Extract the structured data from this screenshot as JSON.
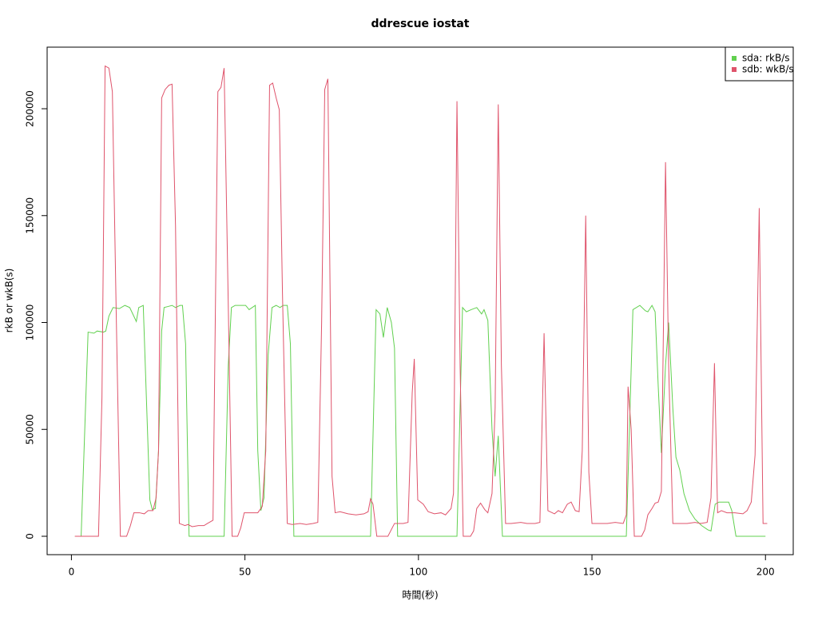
{
  "chart_data": {
    "type": "line",
    "title": "ddrescue iostat",
    "x_label": "時間(秒)",
    "y_label": "rkB or wkB(s)",
    "xlim": [
      -7,
      208
    ],
    "ylim": [
      -8600,
      228800
    ],
    "xticks": [
      0,
      50,
      100,
      150,
      200
    ],
    "yticks": [
      0,
      50000,
      100000,
      150000,
      200000
    ],
    "legend_position": "top-right",
    "series": [
      {
        "name": "sda: rkB/s",
        "color": "#61d04f",
        "x": [
          1,
          2.8,
          4.8,
          6.5,
          7.4,
          9.2,
          9.9,
          10.8,
          12,
          13.8,
          15.4,
          16.8,
          18.7,
          19.4,
          20.7,
          21.7,
          22.6,
          23.3,
          24.2,
          25.1,
          26,
          26.7,
          27.9,
          29,
          30,
          31.3,
          32,
          32.9,
          33.9,
          44,
          45.2,
          46.1,
          47.2,
          50.2,
          51.2,
          53,
          53.7,
          54.6,
          55.5,
          56.7,
          57.8,
          59,
          60.1,
          61,
          62.2,
          63.1,
          64.1,
          86.2,
          87.8,
          88.9,
          89.9,
          91,
          92.2,
          93.1,
          94,
          111.1,
          112.7,
          113.8,
          115.2,
          116.8,
          118.2,
          118.9,
          120,
          121.2,
          122.1,
          123,
          124.2,
          159.9,
          161.8,
          163.8,
          165.4,
          166.1,
          167.3,
          168.2,
          169.1,
          170,
          171.2,
          172.1,
          173.3,
          174.2,
          175.3,
          176.5,
          178.1,
          179.7,
          181.6,
          183.4,
          184.3,
          185.5,
          186.6,
          189.4,
          190.3,
          191.5,
          200
        ],
        "values": [
          0,
          0,
          95500,
          95000,
          96000,
          95500,
          96000,
          103000,
          107000,
          106500,
          108000,
          107000,
          100500,
          107000,
          108000,
          60000,
          17000,
          12500,
          13000,
          40000,
          96000,
          107000,
          107500,
          108000,
          107000,
          108000,
          108000,
          90000,
          0,
          0,
          80000,
          107000,
          108000,
          108000,
          106000,
          108000,
          40000,
          12000,
          18000,
          85000,
          107000,
          108000,
          107000,
          108000,
          108000,
          90000,
          0,
          0,
          106000,
          104000,
          93000,
          107000,
          100000,
          88000,
          0,
          0,
          107000,
          105000,
          106000,
          107000,
          104000,
          106000,
          101000,
          50000,
          28000,
          47000,
          0,
          0,
          106000,
          108000,
          105500,
          105000,
          108000,
          105000,
          70000,
          39000,
          80000,
          100000,
          60000,
          37000,
          31000,
          20000,
          12000,
          8000,
          5000,
          3000,
          2500,
          15000,
          16000,
          16000,
          12000,
          0,
          0
        ]
      },
      {
        "name": "sdb: wkB/s",
        "color": "#df536b",
        "x": [
          1,
          7.8,
          8.8,
          9.7,
          10.8,
          11.8,
          12.9,
          14.1,
          15.9,
          17,
          18,
          19.6,
          21,
          22.1,
          23.5,
          24.4,
          25.1,
          26,
          27,
          28.1,
          29,
          30,
          31.1,
          32.7,
          33.6,
          34.8,
          36.6,
          38.2,
          39.2,
          40.8,
          42.2,
          43.1,
          44,
          45.2,
          46.3,
          47.9,
          48.8,
          49.8,
          51.2,
          52.5,
          53.7,
          55,
          56,
          57.1,
          58,
          59,
          59.9,
          60.8,
          62.2,
          63.6,
          65.9,
          67.7,
          69.6,
          71,
          72.1,
          73,
          73.9,
          75.1,
          76,
          77.4,
          79.7,
          82,
          84.3,
          85.5,
          86.2,
          86.9,
          88,
          91.2,
          93.1,
          94.5,
          95.6,
          97,
          98.2,
          98.8,
          99.8,
          101.4,
          102.8,
          104.6,
          106.5,
          107.8,
          109.4,
          110.1,
          111.1,
          112,
          112.9,
          115,
          115.9,
          116.8,
          117.9,
          119.1,
          120,
          121.2,
          122.1,
          123,
          123.9,
          125.1,
          126.7,
          129.5,
          131.3,
          133.6,
          135,
          136.2,
          137.3,
          139.2,
          140.3,
          141.5,
          142.9,
          144,
          145.2,
          146.3,
          147.2,
          148.2,
          149.1,
          150,
          152.3,
          154.4,
          156.7,
          159,
          159.9,
          160.4,
          161.3,
          162.2,
          164.3,
          165.2,
          166.1,
          167.3,
          168.2,
          169.1,
          170,
          171.2,
          172.1,
          173.3,
          175.3,
          177.4,
          179.7,
          181.3,
          183.2,
          184.3,
          185.3,
          186.2,
          187.3,
          188.9,
          191.2,
          193.5,
          194.7,
          195.9,
          197,
          198.2,
          199.3,
          200.5
        ],
        "values": [
          0,
          0,
          65000,
          220000,
          219000,
          208000,
          105000,
          0,
          0,
          5000,
          11000,
          11000,
          10500,
          12000,
          12000,
          18000,
          40000,
          205000,
          209000,
          211000,
          211500,
          145000,
          6000,
          5000,
          5500,
          4500,
          5000,
          5000,
          6000,
          7500,
          208000,
          210000,
          219000,
          108000,
          0,
          0,
          4000,
          11000,
          11000,
          11000,
          11000,
          14000,
          40000,
          211000,
          212000,
          205000,
          199500,
          115000,
          6000,
          5500,
          6000,
          5500,
          6000,
          6500,
          100000,
          209000,
          214000,
          28000,
          11000,
          11500,
          10500,
          10000,
          10500,
          11500,
          17500,
          15000,
          0,
          0,
          6000,
          6000,
          6000,
          6500,
          67000,
          83000,
          17000,
          15000,
          11500,
          10500,
          11000,
          10000,
          13000,
          20000,
          203500,
          80000,
          0,
          0,
          2500,
          13000,
          15500,
          12500,
          11000,
          20000,
          60000,
          202000,
          80000,
          6000,
          6000,
          6500,
          6000,
          6000,
          6500,
          95000,
          12000,
          10500,
          12000,
          11000,
          15000,
          16000,
          12000,
          11500,
          40000,
          150000,
          30000,
          6000,
          6000,
          6000,
          6500,
          6000,
          10000,
          70000,
          50000,
          0,
          0,
          3000,
          10000,
          13000,
          15500,
          16000,
          21000,
          175000,
          80000,
          6000,
          6000,
          6000,
          6500,
          6000,
          6500,
          18000,
          81000,
          11000,
          12000,
          11000,
          11000,
          10500,
          12000,
          16000,
          38000,
          153500,
          6000,
          6000
        ]
      }
    ]
  }
}
